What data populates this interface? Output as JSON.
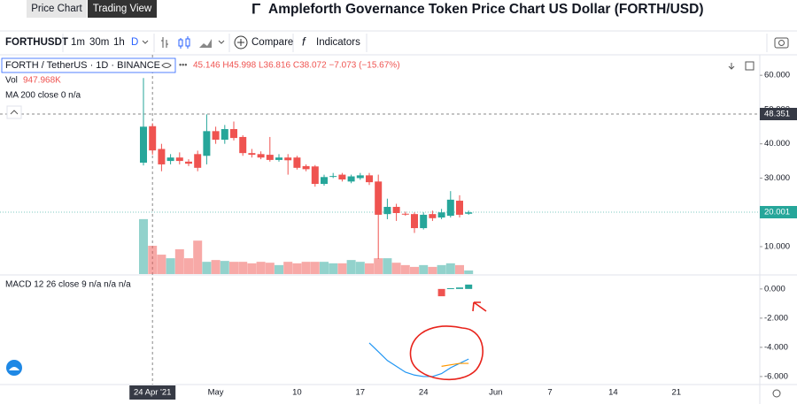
{
  "ui": {
    "tabs": [
      "Price Chart",
      "Trading View"
    ],
    "title": "Ampleforth Governance Token Price Chart US Dollar (FORTH/USD)",
    "symbol": "FORTHUSDT",
    "intervals": [
      "1m",
      "30m",
      "1h",
      "D"
    ],
    "compare": "Compare",
    "indicators": "Indicators",
    "legend_symbol": "FORTH / TetherUS · 1D · BINANCE",
    "legend_ohlc": "45.146 H45.998 L36.816 C38.072 −7.073 (−15.67%)",
    "vol_label": "Vol",
    "vol_value": "947.968K",
    "ma_label": "MA 200 close 0 n/a",
    "macd_label": "MACD 12 26 close 9 n/a n/a n/a",
    "crosshair_price": "48.351",
    "last_price": "20.001"
  },
  "chart_data": [
    {
      "type": "candlestick",
      "categories": [
        null,
        "24 Apr '21",
        null,
        null,
        null,
        null,
        null,
        null,
        "May",
        null,
        null,
        null,
        null,
        null,
        null,
        null,
        null,
        "10",
        null,
        null,
        null,
        null,
        null,
        null,
        "17",
        null,
        null,
        null,
        null,
        null,
        null,
        "24",
        null,
        null,
        null,
        null,
        null,
        null,
        null,
        "Jun",
        null,
        null,
        null,
        null,
        null,
        "7",
        null,
        null,
        null,
        null,
        null,
        null,
        "14",
        null,
        null,
        null,
        null,
        null,
        null,
        "21",
        null,
        null,
        null,
        null,
        null,
        null,
        null,
        null
      ],
      "open": [
        34.5,
        45.146,
        38.5,
        35,
        36,
        34.8,
        37,
        36.5,
        43.7,
        41.2,
        44.3,
        42,
        37.3,
        37,
        36.8,
        35.3,
        36,
        36,
        33.5,
        33.4,
        28.3,
        30.4,
        31,
        29,
        30,
        30.8,
        29,
        19.5,
        21.6,
        19.6,
        19.5,
        15.4,
        19.5,
        18.5,
        19,
        23.4,
        19.6,
        null,
        null,
        null,
        null,
        null,
        null,
        null,
        null,
        null,
        null,
        null,
        null,
        null,
        null,
        null,
        null,
        null,
        null,
        null,
        null,
        null,
        null,
        null,
        null,
        null,
        null,
        null,
        null,
        null,
        null,
        null
      ],
      "high": [
        59.2,
        45.998,
        40,
        37,
        37.5,
        35.5,
        38,
        48.6,
        45,
        45.5,
        46.5,
        42.5,
        38.5,
        37.8,
        42,
        37,
        37,
        36.5,
        34,
        33.8,
        31,
        31.5,
        31.5,
        31,
        31.5,
        31.5,
        31,
        24,
        22.5,
        20.2,
        20,
        20,
        20.5,
        21,
        26.2,
        25,
        20.5,
        null,
        null,
        null,
        null,
        null,
        null,
        null,
        null,
        null,
        null,
        null,
        null,
        null,
        null,
        null,
        null,
        null,
        null,
        null,
        null,
        null,
        null,
        null,
        null,
        null,
        null,
        null,
        null,
        null,
        null,
        null
      ],
      "low": [
        33.7,
        36.816,
        32,
        34,
        34,
        33.5,
        32,
        34,
        40,
        40,
        41,
        36.5,
        36,
        35.5,
        34.8,
        34.8,
        31,
        32.5,
        32,
        27.5,
        27.8,
        30,
        29,
        28.5,
        29.5,
        28,
        6.4,
        18,
        17.5,
        19,
        14,
        15,
        17.5,
        18,
        18.5,
        18.5,
        19.3,
        null,
        null,
        null,
        null,
        null,
        null,
        null,
        null,
        null,
        null,
        null,
        null,
        null,
        null,
        null,
        null,
        null,
        null,
        null,
        null,
        null,
        null,
        null,
        null,
        null,
        null,
        null,
        null,
        null,
        null,
        null
      ],
      "close": [
        45,
        38.072,
        34,
        36,
        35,
        34.2,
        33,
        43.7,
        41.2,
        44.3,
        41.7,
        37.3,
        36.8,
        36,
        35.3,
        36,
        35.2,
        33,
        32.6,
        28.3,
        30.3,
        30.6,
        29.6,
        30.5,
        30.8,
        28.8,
        19.3,
        21.6,
        19.8,
        19.4,
        15.4,
        19.3,
        18.3,
        20,
        23.7,
        19.3,
        20.001,
        null,
        null,
        null,
        null,
        null,
        null,
        null,
        null,
        null,
        null,
        null,
        null,
        null,
        null,
        null,
        null,
        null,
        null,
        null,
        null,
        null,
        null,
        null,
        null,
        null,
        null,
        null,
        null,
        null,
        null,
        null
      ],
      "volume": [
        1840000,
        947968,
        650000,
        530000,
        830000,
        530000,
        1120000,
        410000,
        470000,
        440000,
        410000,
        410000,
        360000,
        410000,
        380000,
        300000,
        410000,
        360000,
        410000,
        410000,
        410000,
        360000,
        360000,
        470000,
        410000,
        360000,
        530000,
        530000,
        380000,
        300000,
        240000,
        300000,
        240000,
        300000,
        360000,
        300000,
        120000,
        null,
        null,
        null,
        null,
        null,
        null,
        null,
        null,
        null,
        null,
        null,
        null,
        null,
        null,
        null,
        null,
        null,
        null,
        null,
        null,
        null,
        null,
        null,
        null,
        null,
        null,
        null,
        null,
        null,
        null,
        null
      ],
      "up_color": "#26a69a",
      "down_color": "#ef5350",
      "ylim": [
        2,
        65.2
      ],
      "yticks": [
        {
          "value": 10,
          "label": "10.000"
        },
        {
          "value": 20,
          "label": "20.000"
        },
        {
          "value": 30,
          "label": "30.000"
        },
        {
          "value": 40,
          "label": "40.000"
        },
        {
          "value": 50,
          "label": "50.000"
        },
        {
          "value": 60,
          "label": "60.000"
        }
      ]
    },
    {
      "type": "line",
      "series": [
        {
          "color": "#2196f3",
          "values": [
            null,
            null,
            null,
            null,
            null,
            null,
            null,
            null,
            null,
            null,
            null,
            null,
            null,
            null,
            null,
            null,
            null,
            null,
            null,
            null,
            null,
            null,
            null,
            null,
            null,
            -3.7,
            -4.3,
            -4.9,
            -5.3,
            -5.7,
            -5.9,
            -6.0,
            -6.0,
            -5.8,
            -5.4,
            -5.1,
            -4.8,
            null,
            null,
            null,
            null,
            null,
            null,
            null,
            null,
            null,
            null,
            null,
            null,
            null,
            null,
            null,
            null,
            null,
            null,
            null,
            null,
            null,
            null,
            null,
            null,
            null,
            null,
            null,
            null,
            null,
            null,
            null
          ]
        },
        {
          "color": "#ff9800",
          "values": [
            null,
            null,
            null,
            null,
            null,
            null,
            null,
            null,
            null,
            null,
            null,
            null,
            null,
            null,
            null,
            null,
            null,
            null,
            null,
            null,
            null,
            null,
            null,
            null,
            null,
            null,
            null,
            null,
            null,
            null,
            null,
            null,
            null,
            -5.3,
            -5.2,
            -5.1,
            -5.1,
            null,
            null,
            null,
            null,
            null,
            null,
            null,
            null,
            null,
            null,
            null,
            null,
            null,
            null,
            null,
            null,
            null,
            null,
            null,
            null,
            null,
            null,
            null,
            null,
            null,
            null,
            null,
            null,
            null,
            null,
            null
          ]
        }
      ],
      "histogram": [
        null,
        null,
        null,
        null,
        null,
        null,
        null,
        null,
        null,
        null,
        null,
        null,
        null,
        null,
        null,
        null,
        null,
        null,
        null,
        null,
        null,
        null,
        null,
        null,
        null,
        null,
        null,
        null,
        null,
        null,
        null,
        null,
        null,
        -0.5,
        0.05,
        0.1,
        0.3,
        null,
        null,
        null,
        null,
        null,
        null,
        null,
        null,
        null,
        null,
        null,
        null,
        null,
        null,
        null,
        null,
        null,
        null,
        null,
        null,
        null,
        null,
        null,
        null,
        null,
        null,
        null,
        null,
        null,
        null,
        null
      ],
      "ylim": [
        -6.55,
        0.9
      ],
      "yticks": [
        {
          "value": 0,
          "label": "0.000"
        },
        {
          "value": -2,
          "label": "-2.000"
        },
        {
          "value": -4,
          "label": "-4.000"
        },
        {
          "value": -6,
          "label": "-6.000"
        }
      ]
    }
  ]
}
